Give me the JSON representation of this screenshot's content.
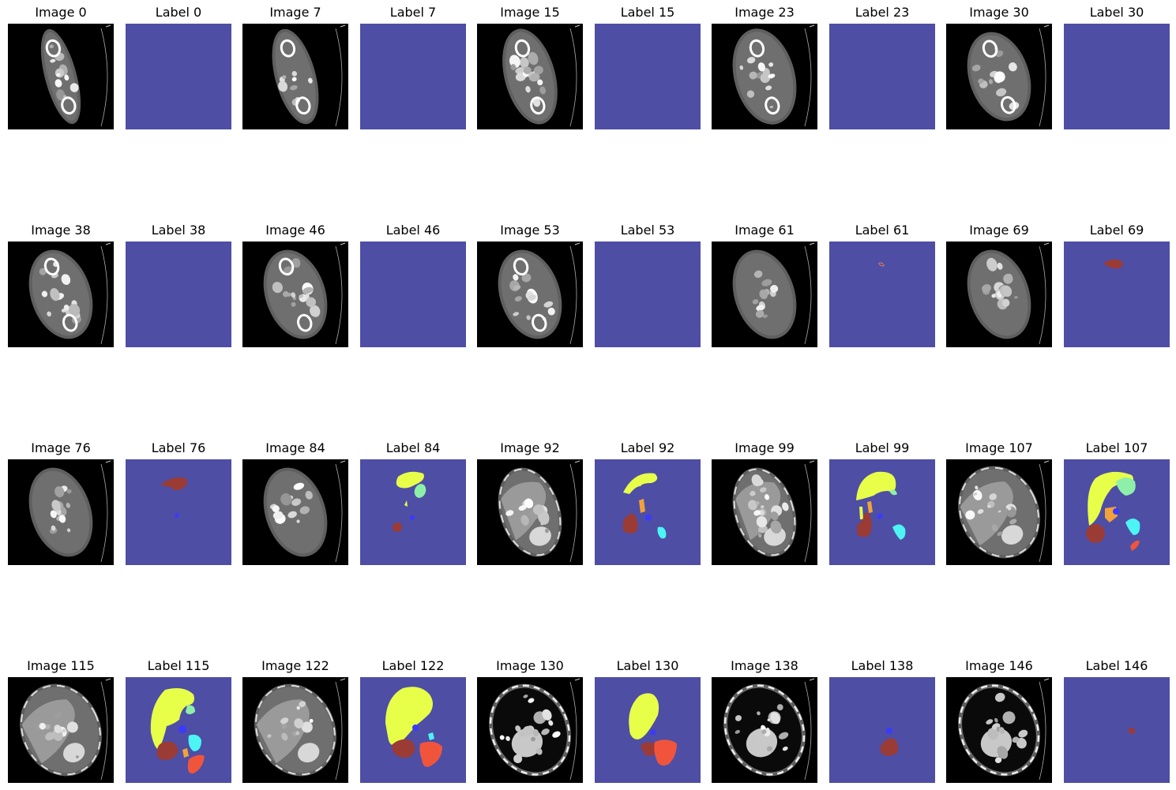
{
  "figure": {
    "panels": [
      {
        "title": "Image 0",
        "kind": "ct",
        "slice": 0,
        "has_label": false
      },
      {
        "title": "Label 0",
        "kind": "label",
        "slice": 0,
        "has_label": false
      },
      {
        "title": "Image 7",
        "kind": "ct",
        "slice": 7,
        "has_label": false
      },
      {
        "title": "Label 7",
        "kind": "label",
        "slice": 7,
        "has_label": false
      },
      {
        "title": "Image 15",
        "kind": "ct",
        "slice": 15,
        "has_label": false
      },
      {
        "title": "Label 15",
        "kind": "label",
        "slice": 15,
        "has_label": false
      },
      {
        "title": "Image 23",
        "kind": "ct",
        "slice": 23,
        "has_label": false
      },
      {
        "title": "Label 23",
        "kind": "label",
        "slice": 23,
        "has_label": false
      },
      {
        "title": "Image 30",
        "kind": "ct",
        "slice": 30,
        "has_label": false
      },
      {
        "title": "Label 30",
        "kind": "label",
        "slice": 30,
        "has_label": false
      },
      {
        "title": "Image 38",
        "kind": "ct",
        "slice": 38,
        "has_label": false
      },
      {
        "title": "Label 38",
        "kind": "label",
        "slice": 38,
        "has_label": false
      },
      {
        "title": "Image 46",
        "kind": "ct",
        "slice": 46,
        "has_label": false
      },
      {
        "title": "Label 46",
        "kind": "label",
        "slice": 46,
        "has_label": false
      },
      {
        "title": "Image 53",
        "kind": "ct",
        "slice": 53,
        "has_label": false
      },
      {
        "title": "Label 53",
        "kind": "label",
        "slice": 53,
        "has_label": false
      },
      {
        "title": "Image 61",
        "kind": "ct",
        "slice": 61,
        "has_label": false
      },
      {
        "title": "Label 61",
        "kind": "label",
        "slice": 61,
        "has_label": true
      },
      {
        "title": "Image 69",
        "kind": "ct",
        "slice": 69,
        "has_label": false
      },
      {
        "title": "Label 69",
        "kind": "label",
        "slice": 69,
        "has_label": true
      },
      {
        "title": "Image 76",
        "kind": "ct",
        "slice": 76,
        "has_label": false
      },
      {
        "title": "Label 76",
        "kind": "label",
        "slice": 76,
        "has_label": true
      },
      {
        "title": "Image 84",
        "kind": "ct",
        "slice": 84,
        "has_label": false
      },
      {
        "title": "Label 84",
        "kind": "label",
        "slice": 84,
        "has_label": true
      },
      {
        "title": "Image 92",
        "kind": "ct",
        "slice": 92,
        "has_label": false
      },
      {
        "title": "Label 92",
        "kind": "label",
        "slice": 92,
        "has_label": true
      },
      {
        "title": "Image 99",
        "kind": "ct",
        "slice": 99,
        "has_label": false
      },
      {
        "title": "Label 99",
        "kind": "label",
        "slice": 99,
        "has_label": true
      },
      {
        "title": "Image 107",
        "kind": "ct",
        "slice": 107,
        "has_label": false
      },
      {
        "title": "Label 107",
        "kind": "label",
        "slice": 107,
        "has_label": true
      },
      {
        "title": "Image 115",
        "kind": "ct",
        "slice": 115,
        "has_label": false
      },
      {
        "title": "Label 115",
        "kind": "label",
        "slice": 115,
        "has_label": true
      },
      {
        "title": "Image 122",
        "kind": "ct",
        "slice": 122,
        "has_label": false
      },
      {
        "title": "Label 122",
        "kind": "label",
        "slice": 122,
        "has_label": true
      },
      {
        "title": "Image 130",
        "kind": "ct",
        "slice": 130,
        "has_label": false
      },
      {
        "title": "Label 130",
        "kind": "label",
        "slice": 130,
        "has_label": true
      },
      {
        "title": "Image 138",
        "kind": "ct",
        "slice": 138,
        "has_label": false
      },
      {
        "title": "Label 138",
        "kind": "label",
        "slice": 138,
        "has_label": true
      },
      {
        "title": "Image 146",
        "kind": "ct",
        "slice": 146,
        "has_label": false
      },
      {
        "title": "Label 146",
        "kind": "label",
        "slice": 146,
        "has_label": true
      }
    ]
  },
  "colors": {
    "label_background": "#4e4ea5",
    "ct_background": "#000000",
    "organ_yellow": "#e8ff4a",
    "organ_brown": "#9a3b35",
    "organ_cyan": "#4cf4f4",
    "organ_mint": "#8ef0a8",
    "organ_orange": "#f2a23a",
    "organ_red": "#f0553b",
    "organ_blue": "#3a3aff"
  }
}
